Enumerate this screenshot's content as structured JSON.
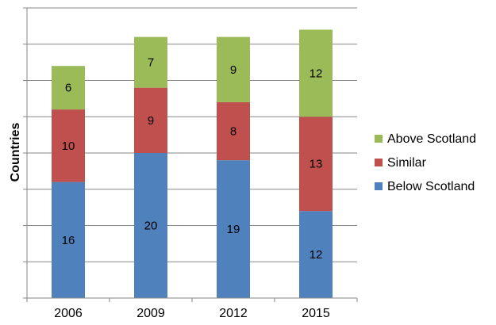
{
  "chart_data": {
    "type": "bar",
    "stacked": true,
    "title": "",
    "xlabel": "",
    "ylabel": "Countries",
    "categories": [
      "2006",
      "2009",
      "2012",
      "2015"
    ],
    "series": [
      {
        "name": "Below Scotland",
        "values": [
          16,
          20,
          19,
          12
        ],
        "color": "#4F81BD"
      },
      {
        "name": "Similar",
        "values": [
          10,
          9,
          8,
          13
        ],
        "color": "#C0504D"
      },
      {
        "name": "Above Scotland",
        "values": [
          6,
          7,
          9,
          12
        ],
        "color": "#9BBB59"
      }
    ],
    "ylim": [
      0,
      40
    ],
    "y_gridlines": true,
    "y_tick_labels_shown": false,
    "legend_position": "right",
    "legend_order": [
      "Above Scotland",
      "Similar",
      "Below Scotland"
    ]
  }
}
